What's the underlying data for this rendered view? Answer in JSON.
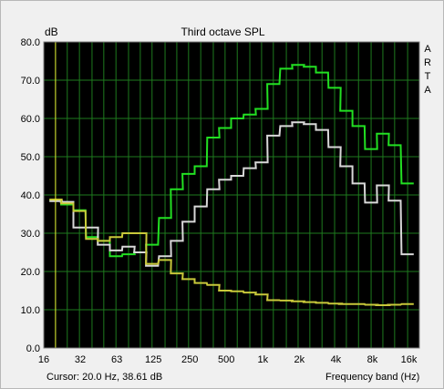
{
  "unit_label": "dB",
  "brand_letters": [
    "A",
    "R",
    "T",
    "A"
  ],
  "cursor_readout": "Cursor:     20.0 Hz, 38.61 dB",
  "colors": {
    "plot_bg": "#000000",
    "grid": "#1e7a1e",
    "green_series": "#22e022",
    "white_series": "#d8d8d8",
    "yellow_series": "#c8c83a",
    "marker": "#e6e630"
  },
  "chart_data": {
    "type": "line",
    "title": "Third octave SPL",
    "xlabel": "Frequency band (Hz)",
    "ylabel": "dB",
    "x_scale": "log",
    "grid": true,
    "ylim": [
      0,
      80
    ],
    "xlim_bands_hz": [
      16,
      20000
    ],
    "x_tick_labels": [
      "16",
      "32",
      "63",
      "125",
      "250",
      "500",
      "1k",
      "2k",
      "4k",
      "8k",
      "16k"
    ],
    "y_tick_labels": [
      "0.0",
      "10.0",
      "20.0",
      "30.0",
      "40.0",
      "50.0",
      "60.0",
      "70.0",
      "80.0"
    ],
    "bands_hz": [
      20,
      25,
      31.5,
      40,
      50,
      63,
      80,
      100,
      125,
      160,
      200,
      250,
      315,
      400,
      500,
      630,
      800,
      1000,
      1250,
      1600,
      2000,
      2500,
      3150,
      4000,
      5000,
      6300,
      8000,
      10000,
      12500,
      16000
    ],
    "cursor_marker_hz": 20,
    "series": [
      {
        "values": [
          38.6,
          37.5,
          36,
          29,
          28,
          24,
          24.5,
          25,
          27,
          34,
          41.5,
          45.5,
          47.5,
          55,
          57.5,
          60,
          61,
          62.5,
          69,
          73,
          74,
          73.5,
          72,
          68,
          62,
          58,
          52,
          56,
          53,
          43
        ]
      },
      {
        "values": [
          38.4,
          38.2,
          31.5,
          31.5,
          27,
          25.5,
          26.5,
          25,
          21.5,
          24,
          28,
          33,
          37,
          41.5,
          44,
          45,
          47,
          48.5,
          55.5,
          58,
          59,
          58.5,
          57,
          52.5,
          47.5,
          43,
          38,
          42.5,
          38.5,
          24.5
        ]
      },
      {
        "values": [
          38.8,
          37.8,
          35.8,
          28.5,
          28,
          29,
          30,
          30,
          22,
          23,
          19.5,
          18,
          17,
          16.5,
          15,
          14.8,
          14.5,
          14,
          12.5,
          12.4,
          12.2,
          12,
          11.8,
          11.6,
          11.5,
          11.5,
          11.3,
          11.2,
          11.3,
          11.5
        ]
      }
    ]
  }
}
